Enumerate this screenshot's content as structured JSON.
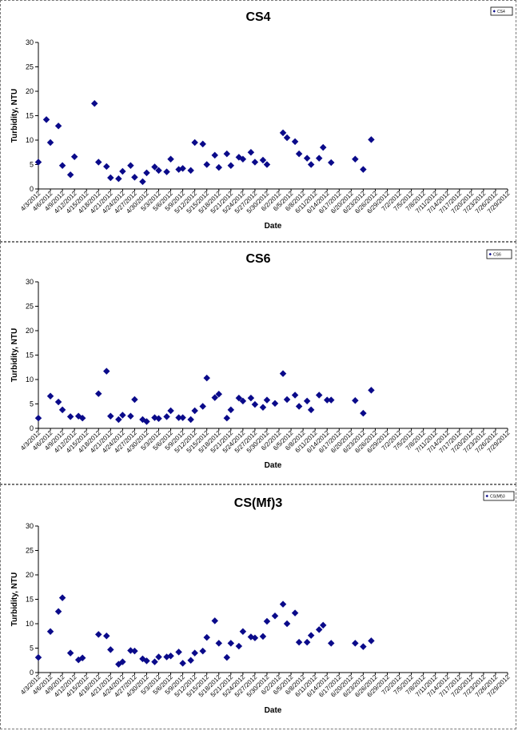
{
  "colors": {
    "marker": "#0a0a8a",
    "axis": "#000000",
    "border": "#777777"
  },
  "dates": [
    "4/3/2012",
    "4/6/2012",
    "4/9/2012",
    "4/12/2012",
    "4/15/2012",
    "4/18/2012",
    "4/21/2012",
    "4/24/2012",
    "4/27/2012",
    "4/30/2012",
    "5/3/2012",
    "5/6/2012",
    "5/9/2012",
    "5/12/2012",
    "5/15/2012",
    "5/18/2012",
    "5/21/2012",
    "5/24/2012",
    "5/27/2012",
    "5/30/2012",
    "6/2/2012",
    "6/5/2012",
    "6/8/2012",
    "6/11/2012",
    "6/14/2012",
    "6/17/2012",
    "6/20/2012",
    "6/23/2012",
    "6/26/2012",
    "6/29/2012",
    "7/2/2012",
    "7/5/2012",
    "7/8/2012",
    "7/11/2012",
    "7/14/2012",
    "7/17/2012",
    "7/20/2012",
    "7/23/2012",
    "7/26/2012",
    "7/29/2012"
  ],
  "chart_data": [
    {
      "type": "scatter",
      "title": "CS4",
      "xlabel": "Date",
      "ylabel": "Turbidity, NTU",
      "ylim": [
        0,
        30
      ],
      "yticks": [
        "0",
        "5",
        "10",
        "15",
        "20",
        "25",
        "30"
      ],
      "xlim": [
        "4/3/2012",
        "7/29/2012"
      ],
      "legend": "top-right",
      "series": [
        {
          "name": "CS4",
          "points": [
            [
              "4/3/2012",
              5.5
            ],
            [
              "4/5/2012",
              14.2
            ],
            [
              "4/6/2012",
              9.5
            ],
            [
              "4/8/2012",
              12.9
            ],
            [
              "4/9/2012",
              4.8
            ],
            [
              "4/11/2012",
              2.9
            ],
            [
              "4/12/2012",
              6.6
            ],
            [
              "4/17/2012",
              17.5
            ],
            [
              "4/18/2012",
              5.5
            ],
            [
              "4/20/2012",
              4.6
            ],
            [
              "4/21/2012",
              2.3
            ],
            [
              "4/23/2012",
              2.1
            ],
            [
              "4/24/2012",
              3.6
            ],
            [
              "4/26/2012",
              4.8
            ],
            [
              "4/27/2012",
              2.4
            ],
            [
              "4/29/2012",
              1.5
            ],
            [
              "4/30/2012",
              3.3
            ],
            [
              "5/2/2012",
              4.5
            ],
            [
              "5/3/2012",
              3.8
            ],
            [
              "5/5/2012",
              3.5
            ],
            [
              "5/6/2012",
              6.1
            ],
            [
              "5/8/2012",
              4.0
            ],
            [
              "5/9/2012",
              4.2
            ],
            [
              "5/11/2012",
              3.8
            ],
            [
              "5/12/2012",
              9.5
            ],
            [
              "5/14/2012",
              9.2
            ],
            [
              "5/15/2012",
              5.0
            ],
            [
              "5/17/2012",
              6.9
            ],
            [
              "5/18/2012",
              4.4
            ],
            [
              "5/20/2012",
              7.2
            ],
            [
              "5/21/2012",
              4.8
            ],
            [
              "5/23/2012",
              6.5
            ],
            [
              "5/24/2012",
              6.1
            ],
            [
              "5/26/2012",
              7.5
            ],
            [
              "5/27/2012",
              5.5
            ],
            [
              "5/29/2012",
              5.9
            ],
            [
              "5/30/2012",
              5.0
            ],
            [
              "6/3/2012",
              11.5
            ],
            [
              "6/4/2012",
              10.5
            ],
            [
              "6/6/2012",
              9.7
            ],
            [
              "6/7/2012",
              7.2
            ],
            [
              "6/9/2012",
              6.3
            ],
            [
              "6/10/2012",
              5.0
            ],
            [
              "6/12/2012",
              6.3
            ],
            [
              "6/13/2012",
              8.5
            ],
            [
              "6/15/2012",
              5.4
            ],
            [
              "6/21/2012",
              6.1
            ],
            [
              "6/23/2012",
              4.0
            ],
            [
              "6/25/2012",
              10.1
            ]
          ]
        }
      ]
    },
    {
      "type": "scatter",
      "title": "CS6",
      "xlabel": "Date",
      "ylabel": "Turbidity, NTU",
      "ylim": [
        0,
        30
      ],
      "yticks": [
        "0",
        "5",
        "10",
        "15",
        "20",
        "25",
        "30"
      ],
      "xlim": [
        "4/3/2012",
        "7/29/2012"
      ],
      "legend": "top-right",
      "series": [
        {
          "name": "CS6",
          "points": [
            [
              "4/3/2012",
              2.1
            ],
            [
              "4/6/2012",
              6.6
            ],
            [
              "4/8/2012",
              5.4
            ],
            [
              "4/9/2012",
              3.8
            ],
            [
              "4/11/2012",
              2.4
            ],
            [
              "4/13/2012",
              2.5
            ],
            [
              "4/14/2012",
              2.1
            ],
            [
              "4/18/2012",
              7.1
            ],
            [
              "4/20/2012",
              11.7
            ],
            [
              "4/21/2012",
              2.5
            ],
            [
              "4/23/2012",
              1.8
            ],
            [
              "4/24/2012",
              2.7
            ],
            [
              "4/26/2012",
              2.5
            ],
            [
              "4/27/2012",
              5.9
            ],
            [
              "4/29/2012",
              1.8
            ],
            [
              "4/30/2012",
              1.4
            ],
            [
              "5/2/2012",
              2.2
            ],
            [
              "5/3/2012",
              2.0
            ],
            [
              "5/5/2012",
              2.4
            ],
            [
              "5/6/2012",
              3.6
            ],
            [
              "5/8/2012",
              2.2
            ],
            [
              "5/9/2012",
              2.2
            ],
            [
              "5/11/2012",
              1.8
            ],
            [
              "5/12/2012",
              3.6
            ],
            [
              "5/14/2012",
              4.5
            ],
            [
              "5/15/2012",
              10.3
            ],
            [
              "5/17/2012",
              6.3
            ],
            [
              "5/18/2012",
              7.0
            ],
            [
              "5/20/2012",
              2.1
            ],
            [
              "5/21/2012",
              3.8
            ],
            [
              "5/23/2012",
              6.2
            ],
            [
              "5/24/2012",
              5.6
            ],
            [
              "5/26/2012",
              6.2
            ],
            [
              "5/27/2012",
              4.9
            ],
            [
              "5/29/2012",
              4.3
            ],
            [
              "5/30/2012",
              5.8
            ],
            [
              "6/1/2012",
              5.1
            ],
            [
              "6/3/2012",
              11.2
            ],
            [
              "6/4/2012",
              5.9
            ],
            [
              "6/6/2012",
              6.8
            ],
            [
              "6/7/2012",
              4.5
            ],
            [
              "6/9/2012",
              5.6
            ],
            [
              "6/10/2012",
              3.8
            ],
            [
              "6/12/2012",
              6.8
            ],
            [
              "6/14/2012",
              5.8
            ],
            [
              "6/15/2012",
              5.8
            ],
            [
              "6/21/2012",
              5.7
            ],
            [
              "6/23/2012",
              3.1
            ],
            [
              "6/25/2012",
              7.8
            ]
          ]
        }
      ]
    },
    {
      "type": "scatter",
      "title": "CS(Mf)3",
      "xlabel": "Date",
      "ylabel": "Turbidity, NTU",
      "ylim": [
        0,
        30
      ],
      "yticks": [
        "0",
        "5",
        "10",
        "15",
        "20",
        "25",
        "30"
      ],
      "xlim": [
        "4/3/2012",
        "7/29/2012"
      ],
      "legend": "top-right",
      "series": [
        {
          "name": "CS(Mf)3",
          "points": [
            [
              "4/3/2012",
              3.1
            ],
            [
              "4/6/2012",
              8.4
            ],
            [
              "4/8/2012",
              12.5
            ],
            [
              "4/9/2012",
              15.3
            ],
            [
              "4/11/2012",
              4.0
            ],
            [
              "4/13/2012",
              2.6
            ],
            [
              "4/14/2012",
              3.0
            ],
            [
              "4/18/2012",
              7.8
            ],
            [
              "4/20/2012",
              7.5
            ],
            [
              "4/21/2012",
              4.7
            ],
            [
              "4/23/2012",
              1.7
            ],
            [
              "4/24/2012",
              2.2
            ],
            [
              "4/26/2012",
              4.5
            ],
            [
              "4/27/2012",
              4.4
            ],
            [
              "4/29/2012",
              2.8
            ],
            [
              "4/30/2012",
              2.4
            ],
            [
              "5/2/2012",
              2.2
            ],
            [
              "5/3/2012",
              3.2
            ],
            [
              "5/5/2012",
              3.2
            ],
            [
              "5/6/2012",
              3.4
            ],
            [
              "5/8/2012",
              4.2
            ],
            [
              "5/9/2012",
              1.9
            ],
            [
              "5/11/2012",
              2.5
            ],
            [
              "5/12/2012",
              4.0
            ],
            [
              "5/14/2012",
              4.4
            ],
            [
              "5/15/2012",
              7.2
            ],
            [
              "5/17/2012",
              10.6
            ],
            [
              "5/18/2012",
              6.0
            ],
            [
              "5/20/2012",
              3.1
            ],
            [
              "5/21/2012",
              6.0
            ],
            [
              "5/23/2012",
              5.4
            ],
            [
              "5/24/2012",
              8.4
            ],
            [
              "5/26/2012",
              7.3
            ],
            [
              "5/27/2012",
              7.1
            ],
            [
              "5/29/2012",
              7.4
            ],
            [
              "5/30/2012",
              10.5
            ],
            [
              "6/1/2012",
              11.6
            ],
            [
              "6/3/2012",
              14.0
            ],
            [
              "6/4/2012",
              10.0
            ],
            [
              "6/6/2012",
              12.2
            ],
            [
              "6/7/2012",
              6.2
            ],
            [
              "6/9/2012",
              6.2
            ],
            [
              "6/10/2012",
              7.6
            ],
            [
              "6/12/2012",
              8.8
            ],
            [
              "6/13/2012",
              9.7
            ],
            [
              "6/15/2012",
              6.0
            ],
            [
              "6/21/2012",
              6.0
            ],
            [
              "6/23/2012",
              5.3
            ],
            [
              "6/25/2012",
              6.5
            ]
          ]
        }
      ]
    }
  ]
}
